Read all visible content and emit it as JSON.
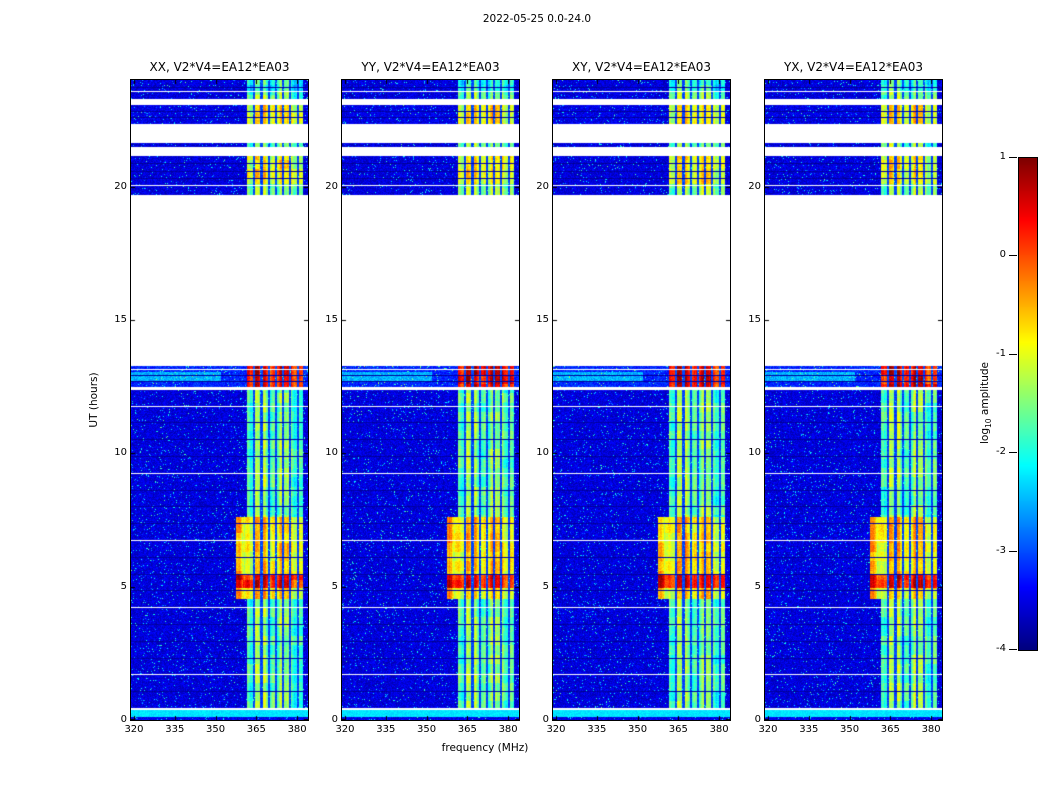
{
  "figure": {
    "title": "2022-05-25 0.0-24.0"
  },
  "chart_data": {
    "type": "heatmap",
    "title": "2022-05-25 0.0-24.0",
    "xlabel": "frequency (MHz)",
    "ylabel": "UT (hours)",
    "grid": false,
    "panels": [
      {
        "title": "XX, V2*V4=EA12*EA03"
      },
      {
        "title": "YY, V2*V4=EA12*EA03"
      },
      {
        "title": "XY, V2*V4=EA12*EA03"
      },
      {
        "title": "YX, V2*V4=EA12*EA03"
      }
    ],
    "x_range": [
      318.9,
      384.0
    ],
    "x_ticks": [
      320,
      335,
      350,
      365,
      380
    ],
    "y_range": [
      0,
      24
    ],
    "y_ticks": [
      0,
      5,
      10,
      15,
      20
    ],
    "colorbar": {
      "label_prefix": "log",
      "label_sub": "10",
      "label_suffix": " amplitude",
      "range": [
        -4,
        1
      ],
      "ticks": [
        1,
        0,
        -1,
        -2,
        -3,
        -4
      ],
      "colormap": "jet"
    },
    "spectrogram": {
      "background_level": -3.55,
      "noise_amplitude": 0.5,
      "speckle_prob": 0.045,
      "rfi_band": {
        "f0": 361.5,
        "f1": 382.3,
        "notches": [
          364.3,
          366.9,
          369.6,
          372.2,
          374.8,
          377.4,
          380.2
        ]
      },
      "segments": [
        {
          "t0": 0.0,
          "t1": 0.12,
          "bg": -3.5
        },
        {
          "t0": 0.12,
          "t1": 0.38,
          "flat": -2.25
        },
        {
          "t0": 0.45,
          "t1": 12.38,
          "bg": -3.55,
          "rfi": -1.55
        },
        {
          "t0": 12.5,
          "t1": 13.28,
          "bg": -3.2,
          "rfi": 0.45,
          "wisp": true
        },
        {
          "t0": 19.7,
          "t1": 21.15,
          "bg": -3.55,
          "rfi": -1.4
        },
        {
          "t0": 21.5,
          "t1": 21.62,
          "bg": -3.55,
          "rfi": -1.5
        },
        {
          "t0": 22.35,
          "t1": 23.05,
          "bg": -3.5,
          "rfi": -1.15
        },
        {
          "t0": 23.3,
          "t1": 23.55,
          "bg": -3.55,
          "rfi": -1.5
        },
        {
          "t0": 23.6,
          "t1": 24.0,
          "bg": -3.55,
          "rfi": -1.9
        }
      ],
      "boosts": [
        {
          "t0": 4.55,
          "t1": 7.6,
          "add": 0.8,
          "f0": 357.5
        },
        {
          "t0": 4.95,
          "t1": 5.45,
          "add": 1.1,
          "f0": 357.5
        },
        {
          "t0": 20.1,
          "t1": 21.15,
          "add": 0.5
        },
        {
          "t0": 22.35,
          "t1": 23.05,
          "add": 0.3
        }
      ],
      "separators_auto": {
        "t0": 0.45,
        "t1": 12.38,
        "interval": 0.63
      },
      "separators": [
        {
          "t": 12.7,
          "type": "dark"
        },
        {
          "t": 12.95,
          "type": "dark"
        },
        {
          "t": 13.18,
          "type": "white"
        },
        {
          "t": 20.07,
          "type": "white"
        },
        {
          "t": 20.33,
          "type": "dark"
        },
        {
          "t": 20.6,
          "type": "dark"
        },
        {
          "t": 20.87,
          "type": "dark"
        },
        {
          "t": 22.6,
          "type": "dark"
        },
        {
          "t": 22.85,
          "type": "dark"
        },
        {
          "t": 23.75,
          "type": "dark"
        }
      ]
    }
  }
}
